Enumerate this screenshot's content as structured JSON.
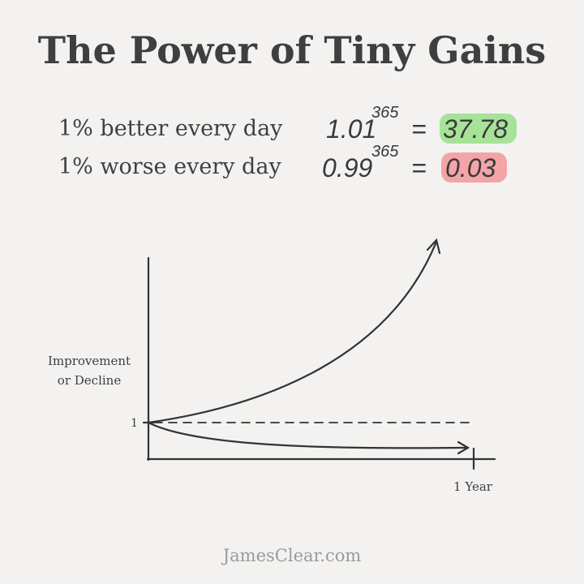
{
  "header": {
    "title": "The Power of Tiny Gains"
  },
  "formulas": [
    {
      "label": "1% better every day",
      "base": "1.01",
      "exponent": "365",
      "equals": "=",
      "result": "37.78"
    },
    {
      "label": "1% worse every day",
      "base": "0.99",
      "exponent": "365",
      "equals": "=",
      "result": "0.03"
    }
  ],
  "graph": {
    "y_axis_label_lines": [
      "Improvement",
      "or Decline"
    ],
    "y_marker": "1",
    "x_marker": "1 Year"
  },
  "footer": {
    "source": "JamesClear.com"
  }
}
